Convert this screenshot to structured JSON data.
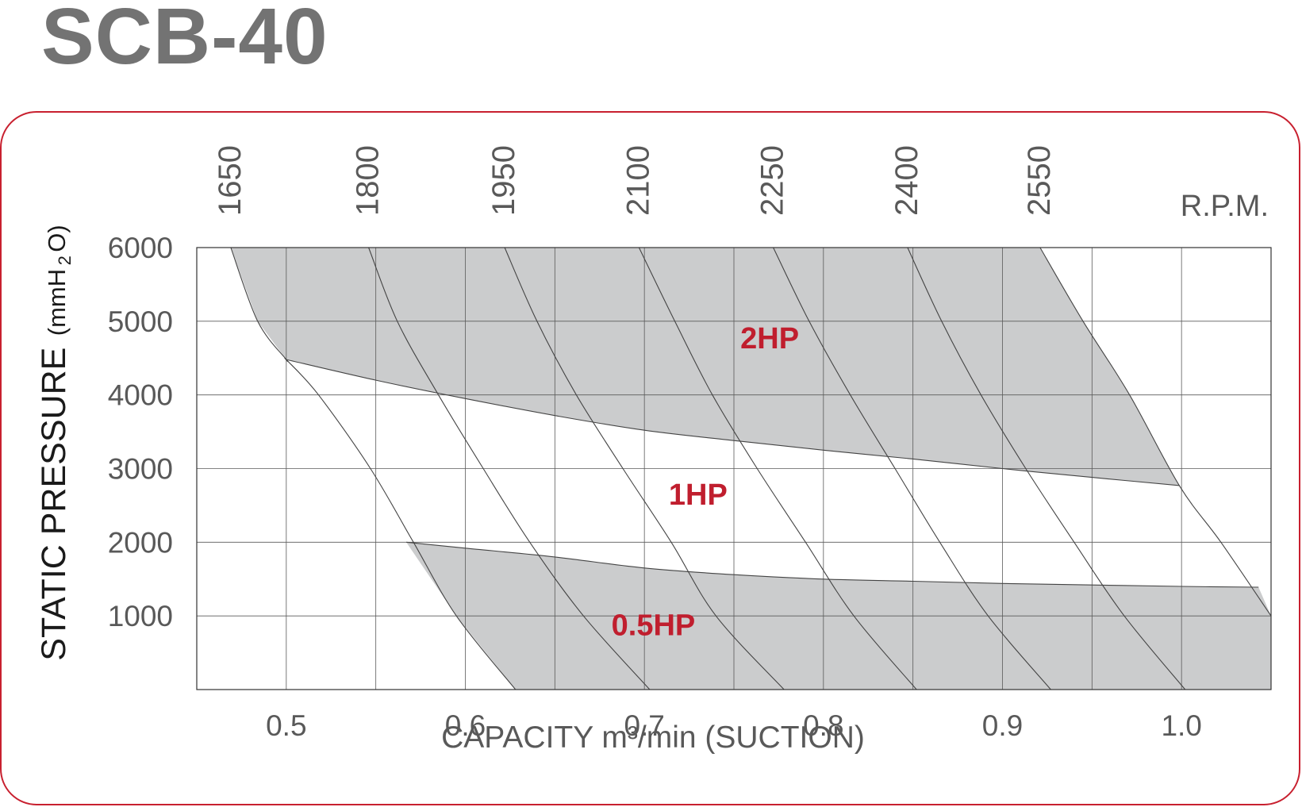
{
  "title": "SCB-40",
  "colors": {
    "frame": "#c8202f",
    "title": "#737373",
    "fill": "#cbcccd",
    "grid": "#5a5a5a",
    "text": "#595959",
    "hp_label": "#c01e2e"
  },
  "chart_data": {
    "type": "area",
    "xlabel": "CAPACITY m³/min (SUCTION)",
    "ylabel": "STATIC PRESSURE (mmH2O)",
    "ylabel_main": "STATIC PRESSURE",
    "ylabel_unit_pre": "(mmH",
    "ylabel_unit_sub": "2",
    "ylabel_unit_post": "O)",
    "xlim": [
      0.45,
      1.05
    ],
    "ylim": [
      0,
      6000
    ],
    "x_ticks": [
      0.5,
      0.6,
      0.7,
      0.8,
      0.9,
      1.0
    ],
    "x_tick_labels": [
      "0.5",
      "0.6",
      "0.7",
      "0.8",
      "0.9",
      "1.0"
    ],
    "x_gridlines": [
      0.45,
      0.5,
      0.55,
      0.6,
      0.65,
      0.7,
      0.75,
      0.8,
      0.85,
      0.9,
      0.95,
      1.0,
      1.05
    ],
    "y_ticks": [
      1000,
      2000,
      3000,
      4000,
      5000,
      6000
    ],
    "y_tick_labels": [
      "1000",
      "2000",
      "3000",
      "4000",
      "5000",
      "6000"
    ],
    "grid": true,
    "rpm_unit": "R.P.M.",
    "rpm_curves": [
      {
        "rpm": "1650",
        "top_x": 0.469,
        "points": [
          [
            0.469,
            6000
          ],
          [
            0.484,
            5000
          ],
          [
            0.5,
            4480
          ],
          [
            0.5,
            4480
          ],
          [
            0.518,
            4000
          ],
          [
            0.547,
            3000
          ],
          [
            0.571,
            2000
          ],
          [
            0.595,
            1000
          ],
          [
            0.628,
            0
          ]
        ]
      },
      {
        "rpm": "1800",
        "top_x": 0.546,
        "points": [
          [
            0.546,
            6000
          ],
          [
            0.562,
            5000
          ],
          [
            0.585,
            4000
          ],
          [
            0.61,
            3000
          ],
          [
            0.636,
            2000
          ],
          [
            0.666,
            1000
          ],
          [
            0.703,
            0
          ]
        ]
      },
      {
        "rpm": "1950",
        "top_x": 0.622,
        "points": [
          [
            0.622,
            6000
          ],
          [
            0.64,
            5000
          ],
          [
            0.662,
            4000
          ],
          [
            0.688,
            3000
          ],
          [
            0.715,
            2000
          ],
          [
            0.74,
            1000
          ],
          [
            0.778,
            0
          ]
        ]
      },
      {
        "rpm": "2100",
        "top_x": 0.697,
        "points": [
          [
            0.697,
            6000
          ],
          [
            0.717,
            5000
          ],
          [
            0.738,
            4000
          ],
          [
            0.763,
            3000
          ],
          [
            0.79,
            2000
          ],
          [
            0.817,
            1000
          ],
          [
            0.852,
            0
          ]
        ]
      },
      {
        "rpm": "2250",
        "top_x": 0.772,
        "points": [
          [
            0.772,
            6000
          ],
          [
            0.792,
            5000
          ],
          [
            0.815,
            4000
          ],
          [
            0.84,
            3000
          ],
          [
            0.865,
            2000
          ],
          [
            0.892,
            1000
          ],
          [
            0.927,
            0
          ]
        ]
      },
      {
        "rpm": "2400",
        "top_x": 0.847,
        "points": [
          [
            0.847,
            6000
          ],
          [
            0.866,
            5000
          ],
          [
            0.888,
            4000
          ],
          [
            0.913,
            3000
          ],
          [
            0.94,
            2000
          ],
          [
            0.968,
            1000
          ],
          [
            1.002,
            0
          ]
        ]
      },
      {
        "rpm": "2550",
        "top_x": 0.921,
        "points": [
          [
            0.921,
            6000
          ],
          [
            0.945,
            5000
          ],
          [
            0.971,
            4000
          ],
          [
            0.999,
            2760
          ],
          [
            1.022,
            2000
          ],
          [
            1.05,
            1000
          ]
        ]
      }
    ],
    "power_boundaries": [
      {
        "name": "2HP boundary",
        "points": [
          [
            0.5,
            4480
          ],
          [
            0.55,
            4200
          ],
          [
            0.6,
            3950
          ],
          [
            0.65,
            3720
          ],
          [
            0.7,
            3520
          ],
          [
            0.75,
            3380
          ],
          [
            0.8,
            3250
          ],
          [
            0.85,
            3130
          ],
          [
            0.9,
            3000
          ],
          [
            0.95,
            2880
          ],
          [
            0.999,
            2770
          ]
        ]
      },
      {
        "name": "0.5HP boundary",
        "points": [
          [
            0.567,
            2000
          ],
          [
            0.6,
            1920
          ],
          [
            0.65,
            1800
          ],
          [
            0.7,
            1650
          ],
          [
            0.75,
            1560
          ],
          [
            0.8,
            1500
          ],
          [
            0.85,
            1470
          ],
          [
            0.9,
            1440
          ],
          [
            0.95,
            1420
          ],
          [
            1.0,
            1400
          ],
          [
            1.043,
            1390
          ]
        ]
      }
    ],
    "regions": [
      {
        "label": "2HP",
        "x": 0.77,
        "y": 4630,
        "shaded": true
      },
      {
        "label": "1HP",
        "x": 0.73,
        "y": 2510,
        "shaded": false
      },
      {
        "label": "0.5HP",
        "x": 0.705,
        "y": 740,
        "shaded": true
      }
    ]
  }
}
